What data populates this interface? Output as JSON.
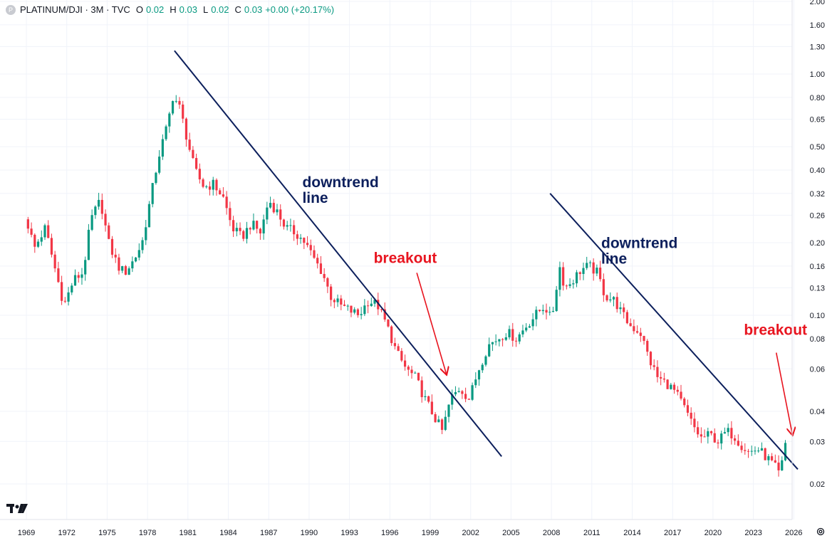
{
  "legend": {
    "symbol": "PLATINUM/DJI · 3M · TVC",
    "o_label": "O",
    "o_value": "0.02",
    "h_label": "H",
    "h_value": "0.03",
    "l_label": "L",
    "l_value": "0.02",
    "c_label": "C",
    "c_value": "0.03",
    "change": "+0.00 (+20.17%)"
  },
  "colors": {
    "up": "#089981",
    "down": "#f23645",
    "trendline": "#0c1f5c",
    "annotation_blue": "#0c1f5c",
    "annotation_red": "#e8141f",
    "grid": "#f0f3fa"
  },
  "chart_data": {
    "type": "candlestick",
    "y_scale": "log",
    "ylim": [
      0.018,
      2.0
    ],
    "xlim": [
      1968.5,
      2027.5
    ],
    "grid": true,
    "y_ticks": [
      "2.00",
      "1.60",
      "1.30",
      "1.00",
      "0.80",
      "0.65",
      "0.50",
      "0.40",
      "0.32",
      "0.26",
      "0.20",
      "0.16",
      "0.13",
      "0.10",
      "0.08",
      "0.06",
      "0.04",
      "0.03",
      "0.02"
    ],
    "x_ticks": [
      "1969",
      "1972",
      "1975",
      "1978",
      "1981",
      "1984",
      "1987",
      "1990",
      "1993",
      "1996",
      "1999",
      "2002",
      "2005",
      "2008",
      "2011",
      "2014",
      "2017",
      "2020",
      "2023",
      "2026"
    ],
    "price_path": [
      [
        1969.0,
        0.25
      ],
      [
        1969.6,
        0.19
      ],
      [
        1970.4,
        0.23
      ],
      [
        1971.2,
        0.15
      ],
      [
        1971.8,
        0.11
      ],
      [
        1972.5,
        0.14
      ],
      [
        1973.2,
        0.15
      ],
      [
        1973.8,
        0.25
      ],
      [
        1974.5,
        0.3
      ],
      [
        1975.1,
        0.2
      ],
      [
        1975.8,
        0.16
      ],
      [
        1976.3,
        0.15
      ],
      [
        1977.0,
        0.17
      ],
      [
        1977.6,
        0.2
      ],
      [
        1978.2,
        0.3
      ],
      [
        1978.8,
        0.45
      ],
      [
        1979.5,
        0.62
      ],
      [
        1979.9,
        0.82
      ],
      [
        1980.4,
        0.72
      ],
      [
        1980.9,
        0.55
      ],
      [
        1981.5,
        0.4
      ],
      [
        1982.2,
        0.34
      ],
      [
        1982.9,
        0.35
      ],
      [
        1983.6,
        0.31
      ],
      [
        1984.3,
        0.23
      ],
      [
        1985.0,
        0.21
      ],
      [
        1985.7,
        0.24
      ],
      [
        1986.4,
        0.22
      ],
      [
        1987.0,
        0.3
      ],
      [
        1987.6,
        0.27
      ],
      [
        1988.3,
        0.23
      ],
      [
        1989.0,
        0.22
      ],
      [
        1989.7,
        0.2
      ],
      [
        1990.4,
        0.17
      ],
      [
        1991.0,
        0.15
      ],
      [
        1991.6,
        0.12
      ],
      [
        1992.3,
        0.11
      ],
      [
        1993.0,
        0.105
      ],
      [
        1993.7,
        0.1
      ],
      [
        1994.4,
        0.115
      ],
      [
        1995.1,
        0.11
      ],
      [
        1995.8,
        0.09
      ],
      [
        1996.5,
        0.07
      ],
      [
        1997.2,
        0.06
      ],
      [
        1997.9,
        0.055
      ],
      [
        1998.6,
        0.045
      ],
      [
        1999.3,
        0.038
      ],
      [
        1999.9,
        0.033
      ],
      [
        2000.5,
        0.045
      ],
      [
        2001.2,
        0.05
      ],
      [
        2001.9,
        0.045
      ],
      [
        2002.6,
        0.06
      ],
      [
        2003.3,
        0.075
      ],
      [
        2004.0,
        0.08
      ],
      [
        2004.7,
        0.085
      ],
      [
        2005.4,
        0.08
      ],
      [
        2006.1,
        0.09
      ],
      [
        2006.8,
        0.1
      ],
      [
        2007.5,
        0.11
      ],
      [
        2008.0,
        0.095
      ],
      [
        2008.6,
        0.16
      ],
      [
        2009.0,
        0.13
      ],
      [
        2009.6,
        0.14
      ],
      [
        2010.2,
        0.155
      ],
      [
        2010.8,
        0.16
      ],
      [
        2011.4,
        0.15
      ],
      [
        2012.0,
        0.12
      ],
      [
        2012.7,
        0.115
      ],
      [
        2013.3,
        0.1
      ],
      [
        2013.9,
        0.09
      ],
      [
        2014.6,
        0.085
      ],
      [
        2015.3,
        0.065
      ],
      [
        2015.9,
        0.055
      ],
      [
        2016.6,
        0.052
      ],
      [
        2017.2,
        0.048
      ],
      [
        2017.8,
        0.042
      ],
      [
        2018.5,
        0.035
      ],
      [
        2019.1,
        0.031
      ],
      [
        2019.8,
        0.032
      ],
      [
        2020.4,
        0.03
      ],
      [
        2021.0,
        0.033
      ],
      [
        2021.5,
        0.032
      ],
      [
        2022.1,
        0.029
      ],
      [
        2022.7,
        0.027
      ],
      [
        2023.3,
        0.028
      ],
      [
        2023.9,
        0.026
      ],
      [
        2024.5,
        0.024
      ],
      [
        2024.9,
        0.022
      ],
      [
        2025.2,
        0.025
      ],
      [
        2025.4,
        0.03
      ]
    ],
    "trendlines": [
      {
        "x1": 1980.0,
        "y1": 1.25,
        "x2": 2004.3,
        "y2": 0.026
      },
      {
        "x1": 2007.9,
        "y1": 0.32,
        "x2": 2026.3,
        "y2": 0.023
      }
    ],
    "annotations": [
      {
        "text_lines": [
          "downtrend",
          "line"
        ],
        "x": 1989.5,
        "y": 0.34,
        "color": "blue"
      },
      {
        "text_lines": [
          "breakout"
        ],
        "x": 1994.8,
        "y": 0.165,
        "color": "red",
        "arrow_from": [
          1998.0,
          0.15
        ],
        "arrow_to": [
          2000.2,
          0.057
        ]
      },
      {
        "text_lines": [
          "downtrend",
          "line"
        ],
        "x": 2011.7,
        "y": 0.19,
        "color": "blue"
      },
      {
        "text_lines": [
          "breakout"
        ],
        "x": 2022.3,
        "y": 0.083,
        "color": "red",
        "arrow_from": [
          2024.7,
          0.07
        ],
        "arrow_to": [
          2025.9,
          0.032
        ]
      }
    ]
  }
}
